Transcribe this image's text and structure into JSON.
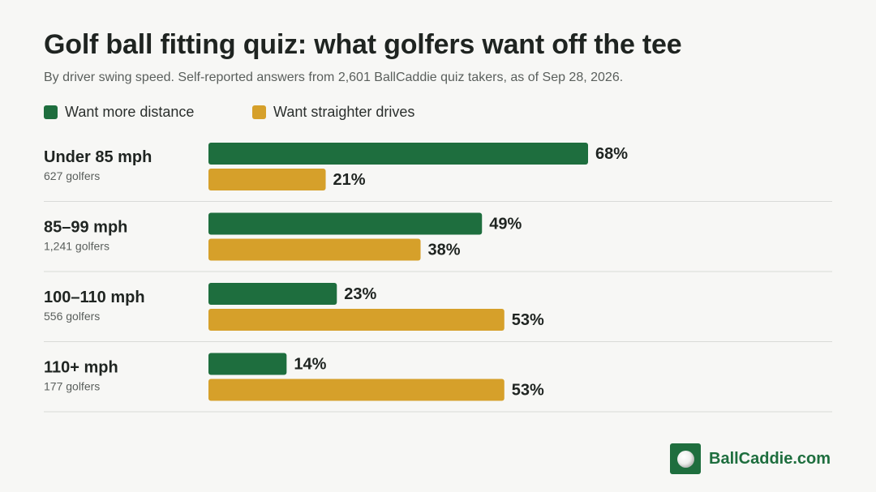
{
  "colors": {
    "distance": "#1e6e3e",
    "straighter": "#d6a02a",
    "text": "#1f2421",
    "muted": "#5a5f5c",
    "divider": "#d9dbd8",
    "brand": "#1e6e3e"
  },
  "brand": {
    "name": "BallCaddie.com",
    "icon": "golf-ball-icon"
  },
  "chart_data": {
    "type": "bar",
    "orientation": "horizontal",
    "title": "Golf ball fitting quiz: what golfers want off the tee",
    "subtitle": "By driver swing speed. Self-reported answers from 2,601 BallCaddie quiz takers, as of Sep 28, 2026.",
    "legend_position": "top-left",
    "grid": false,
    "xlim": [
      0,
      100
    ],
    "value_suffix": "%",
    "categories": [
      "Under 85 mph",
      "85–99 mph",
      "100–110 mph",
      "110+ mph"
    ],
    "category_sublabels": [
      "627 golfers",
      "1,241 golfers",
      "556 golfers",
      "177 golfers"
    ],
    "series": [
      {
        "name": "Want more distance",
        "values": [
          68,
          49,
          23,
          14
        ]
      },
      {
        "name": "Want straighter drives",
        "values": [
          21,
          38,
          53,
          53
        ]
      }
    ]
  }
}
